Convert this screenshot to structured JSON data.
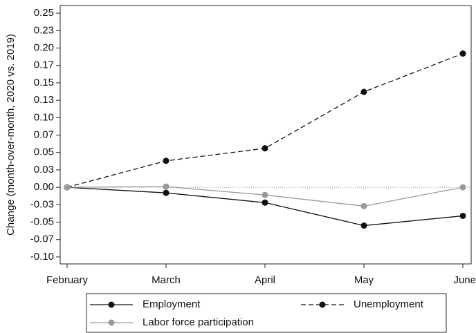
{
  "chart_data": {
    "type": "line",
    "y_label": "Change (month-over-month, 2020 vs. 2019)",
    "categories": [
      "February",
      "March",
      "April",
      "May",
      "June"
    ],
    "series": [
      {
        "name": "Employment",
        "color": "#111111",
        "line_style": "solid",
        "values": [
          0,
          -0.008,
          -0.022,
          -0.055,
          -0.041
        ]
      },
      {
        "name": "Unemployment",
        "color": "#111111",
        "line_style": "dashed",
        "values": [
          0,
          0.038,
          0.056,
          0.137,
          0.192
        ]
      },
      {
        "name": "Labor force participation",
        "color": "#999999",
        "line_style": "solid",
        "values": [
          0,
          0.001,
          -0.011,
          -0.027,
          0
        ]
      }
    ],
    "ylim": [
      -0.11,
      0.261
    ],
    "yticks": [
      {
        "value": 0.25,
        "label": "0.25"
      },
      {
        "value": 0.225,
        "label": "0.23"
      },
      {
        "value": 0.2,
        "label": "0.20"
      },
      {
        "value": 0.175,
        "label": "0.17"
      },
      {
        "value": 0.15,
        "label": "0.15"
      },
      {
        "value": 0.125,
        "label": "0.13"
      },
      {
        "value": 0.1,
        "label": "0.10"
      },
      {
        "value": 0.075,
        "label": "0.07"
      },
      {
        "value": 0.05,
        "label": "0.05"
      },
      {
        "value": 0.025,
        "label": "0.03"
      },
      {
        "value": 0,
        "label": "0.00"
      },
      {
        "value": -0.025,
        "label": "-0.03"
      },
      {
        "value": -0.05,
        "label": "-0.05"
      },
      {
        "value": -0.075,
        "label": "-0.07"
      },
      {
        "value": -0.1,
        "label": "-0.10"
      }
    ],
    "zero_line": true
  }
}
